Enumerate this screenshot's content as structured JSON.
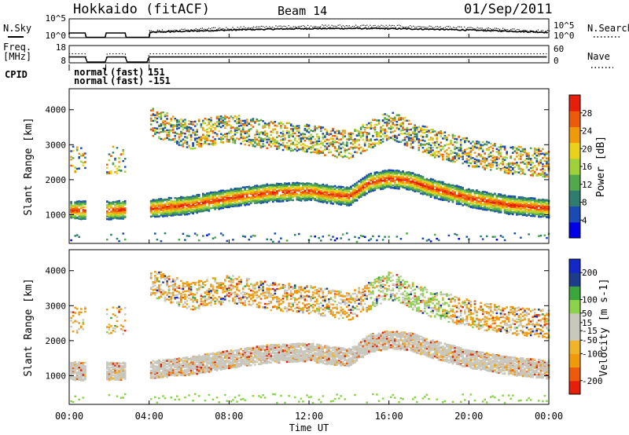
{
  "header": {
    "station": "Hokkaido (fitACF)",
    "beam": "Beam 14",
    "date": "01/Sep/2011"
  },
  "side_labels": {
    "nsky": "N.Sky",
    "nsearch": "N.Search",
    "freq_line1": "Freq.",
    "freq_line2": "[MHz]",
    "nave": "Nave",
    "cpid": "CPID"
  },
  "status_strip": {
    "nsky_ticks": [
      "10^5",
      "10^0"
    ],
    "nsearch_ticks": [
      "10^5",
      "10^0"
    ],
    "freq_ticks": [
      "18",
      "8"
    ],
    "nave_ticks": [
      "60",
      "0"
    ],
    "cpid_modes": [
      {
        "line1": "normal",
        "line2": "normal",
        "start_hour": 0.0,
        "end_hour": 0.83
      },
      {
        "line1": "(fast)",
        "line2": "(fast)",
        "start_hour": 1.83,
        "end_hour": 2.83
      },
      {
        "line1": "151",
        "line2": "-151",
        "start_hour": 4.0,
        "end_hour": 24.0
      }
    ]
  },
  "colors": {
    "power": [
      "#0000e6",
      "#1a4bb4",
      "#2f7d6e",
      "#52a84a",
      "#9fd13a",
      "#e8d21a",
      "#f09a0a",
      "#ec5a0a",
      "#e61e0a"
    ],
    "velocity": [
      "#e61e0a",
      "#ec5a0a",
      "#f09a0a",
      "#f0b428",
      "#c8c8be",
      "#c8c8be",
      "#8cd24b",
      "#3ca53c",
      "#1e3c8c",
      "#1428c8"
    ],
    "background": "#ffffff",
    "ground_scatter": "#c8c8be"
  },
  "chart_data": [
    {
      "type": "heatmap",
      "name": "Backscatter power",
      "xlabel": "",
      "ylabel": "Slant Range [km]",
      "x_ticks": [
        "00:00",
        "04:00",
        "08:00",
        "12:00",
        "16:00",
        "20:00",
        "00:00"
      ],
      "xlim_hours": [
        0,
        24
      ],
      "y_ticks": [
        1000,
        2000,
        3000,
        4000
      ],
      "ylim_km": [
        180,
        4600
      ],
      "colorbar": {
        "label": "Power [dB]",
        "ticks": [
          4,
          8,
          12,
          16,
          20,
          24,
          28
        ],
        "range": [
          0,
          32
        ]
      },
      "data_gaps_hours": [
        [
          0.83,
          1.83
        ],
        [
          2.83,
          4.0
        ]
      ],
      "main_band_center_km": [
        [
          0,
          1150
        ],
        [
          2,
          1150
        ],
        [
          4,
          1200
        ],
        [
          6,
          1300
        ],
        [
          8,
          1500
        ],
        [
          10,
          1650
        ],
        [
          12,
          1700
        ],
        [
          13,
          1600
        ],
        [
          14,
          1550
        ],
        [
          15,
          1950
        ],
        [
          16,
          2050
        ],
        [
          17,
          2000
        ],
        [
          18,
          1800
        ],
        [
          19,
          1650
        ],
        [
          20,
          1500
        ],
        [
          22,
          1300
        ],
        [
          24,
          1200
        ]
      ],
      "upper_band_center_km": [
        [
          4,
          3700
        ],
        [
          6,
          3300
        ],
        [
          8,
          3500
        ],
        [
          10,
          3300
        ],
        [
          12,
          3200
        ],
        [
          14,
          3000
        ],
        [
          16,
          3600
        ],
        [
          18,
          3100
        ],
        [
          20,
          2800
        ],
        [
          22,
          2600
        ],
        [
          24,
          2500
        ]
      ]
    },
    {
      "type": "heatmap",
      "name": "Line-of-sight velocity",
      "xlabel": "Time UT",
      "ylabel": "Slant Range [km]",
      "x_ticks": [
        "00:00",
        "04:00",
        "08:00",
        "12:00",
        "16:00",
        "20:00",
        "00:00"
      ],
      "xlim_hours": [
        0,
        24
      ],
      "y_ticks": [
        1000,
        2000,
        3000,
        4000
      ],
      "ylim_km": [
        180,
        4600
      ],
      "colorbar": {
        "label": "Velocity [m s-1]",
        "ticks": [
          -200,
          -100,
          -50,
          -15,
          15,
          50,
          100,
          200
        ],
        "range": [
          -250,
          250
        ]
      },
      "data_gaps_hours": [
        [
          0.83,
          1.83
        ],
        [
          2.83,
          4.0
        ]
      ],
      "main_band_center_km": [
        [
          0,
          1150
        ],
        [
          2,
          1150
        ],
        [
          4,
          1200
        ],
        [
          6,
          1300
        ],
        [
          8,
          1500
        ],
        [
          10,
          1650
        ],
        [
          12,
          1700
        ],
        [
          13,
          1600
        ],
        [
          14,
          1550
        ],
        [
          15,
          1950
        ],
        [
          16,
          2050
        ],
        [
          17,
          2000
        ],
        [
          18,
          1800
        ],
        [
          19,
          1650
        ],
        [
          20,
          1500
        ],
        [
          22,
          1300
        ],
        [
          24,
          1200
        ]
      ],
      "upper_band_center_km": [
        [
          4,
          3700
        ],
        [
          6,
          3300
        ],
        [
          8,
          3500
        ],
        [
          10,
          3300
        ],
        [
          12,
          3200
        ],
        [
          14,
          3000
        ],
        [
          16,
          3600
        ],
        [
          18,
          3100
        ],
        [
          20,
          2800
        ],
        [
          22,
          2600
        ],
        [
          24,
          2500
        ]
      ]
    }
  ]
}
